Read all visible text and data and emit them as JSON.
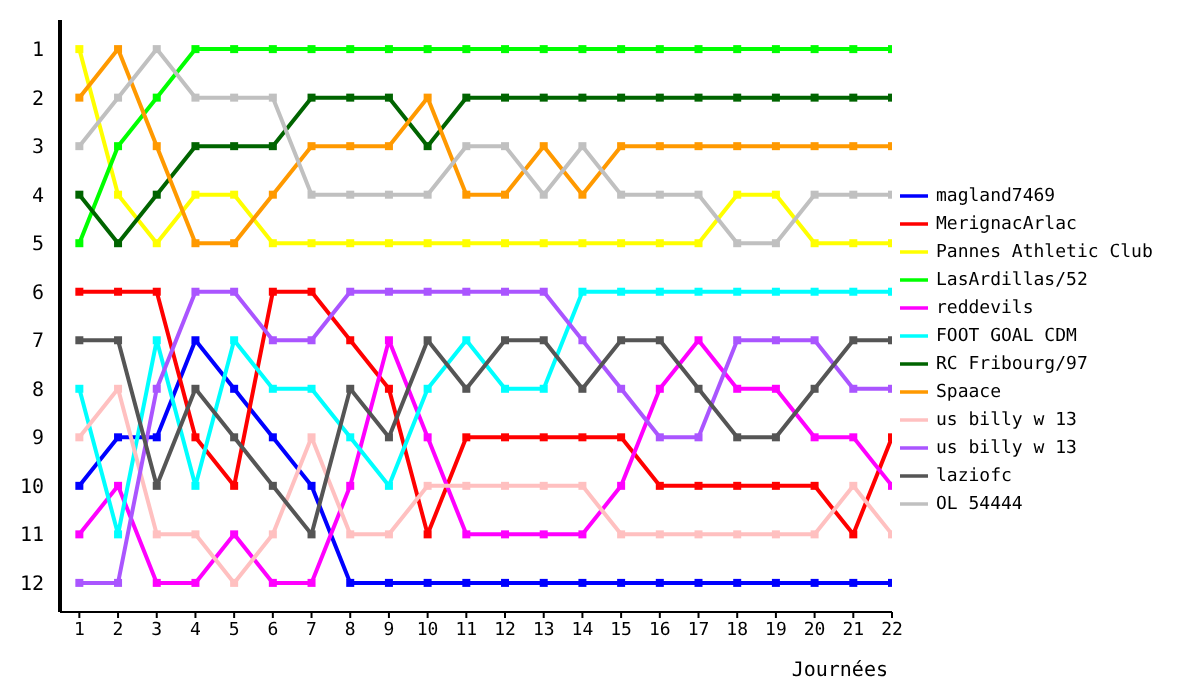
{
  "chart_data": {
    "type": "line",
    "xlabel": "Journées",
    "x": [
      1,
      2,
      3,
      4,
      5,
      6,
      7,
      8,
      9,
      10,
      11,
      12,
      13,
      14,
      15,
      16,
      17,
      18,
      19,
      20,
      21,
      22
    ],
    "xlim": [
      0.5,
      22
    ],
    "xticks": [
      1,
      2,
      3,
      4,
      5,
      6,
      7,
      8,
      9,
      10,
      11,
      12,
      13,
      14,
      15,
      16,
      17,
      18,
      19,
      20,
      21,
      22
    ],
    "ylim": [
      12.6,
      0.4
    ],
    "yticks": [
      1,
      2,
      3,
      4,
      5,
      6,
      7,
      8,
      9,
      10,
      11,
      12
    ],
    "grid": false,
    "legend": "right",
    "marker": "square",
    "line_style": "solid",
    "series": [
      {
        "name": "magland7469",
        "color": "#0000ff",
        "values": [
          10,
          9,
          9,
          7,
          8,
          9,
          10,
          12,
          12,
          12,
          12,
          12,
          12,
          12,
          12,
          12,
          12,
          12,
          12,
          12,
          12,
          12
        ]
      },
      {
        "name": "MerignacArlac",
        "color": "#ff0000",
        "values": [
          6,
          6,
          6,
          9,
          10,
          6,
          6,
          7,
          8,
          11,
          9,
          9,
          9,
          9,
          9,
          10,
          10,
          10,
          10,
          10,
          11,
          9
        ]
      },
      {
        "name": "Pannes Athletic Club",
        "color": "#ffff00",
        "values": [
          1,
          4,
          5,
          4,
          4,
          5,
          5,
          5,
          5,
          5,
          5,
          5,
          5,
          5,
          5,
          5,
          5,
          4,
          4,
          5,
          5,
          5
        ]
      },
      {
        "name": "LasArdillas/52",
        "color": "#00ff00",
        "values": [
          5,
          3,
          2,
          1,
          1,
          1,
          1,
          1,
          1,
          1,
          1,
          1,
          1,
          1,
          1,
          1,
          1,
          1,
          1,
          1,
          1,
          1
        ]
      },
      {
        "name": "reddevils",
        "color": "#ff00ff",
        "values": [
          11,
          10,
          12,
          12,
          11,
          12,
          12,
          10,
          7,
          9,
          11,
          11,
          11,
          11,
          10,
          8,
          7,
          8,
          8,
          9,
          9,
          10
        ]
      },
      {
        "name": "FOOT GOAL CDM",
        "color": "#00ffff",
        "values": [
          8,
          11,
          7,
          10,
          7,
          8,
          8,
          9,
          10,
          8,
          7,
          8,
          8,
          6,
          6,
          6,
          6,
          6,
          6,
          6,
          6,
          6
        ]
      },
      {
        "name": "RC Fribourg/97",
        "color": "#006400",
        "values": [
          4,
          5,
          4,
          3,
          3,
          3,
          2,
          2,
          2,
          3,
          2,
          2,
          2,
          2,
          2,
          2,
          2,
          2,
          2,
          2,
          2,
          2
        ]
      },
      {
        "name": "Spaace",
        "color": "#ff9900",
        "values": [
          2,
          1,
          3,
          5,
          5,
          4,
          3,
          3,
          3,
          2,
          4,
          4,
          3,
          4,
          3,
          3,
          3,
          3,
          3,
          3,
          3,
          3
        ]
      },
      {
        "name": "us billy w 13",
        "color": "#ffc0c0",
        "values": [
          9,
          8,
          11,
          11,
          12,
          11,
          9,
          11,
          11,
          10,
          10,
          10,
          10,
          10,
          11,
          11,
          11,
          11,
          11,
          11,
          10,
          11
        ]
      },
      {
        "name": "us billy w 13",
        "color": "#aa55ff",
        "values": [
          12,
          12,
          8,
          6,
          6,
          7,
          7,
          6,
          6,
          6,
          6,
          6,
          6,
          7,
          8,
          9,
          9,
          7,
          7,
          7,
          8,
          8
        ]
      },
      {
        "name": "laziofc",
        "color": "#555555",
        "values": [
          7,
          7,
          10,
          8,
          9,
          10,
          11,
          8,
          9,
          7,
          8,
          7,
          7,
          8,
          7,
          7,
          8,
          9,
          9,
          8,
          7,
          7
        ]
      },
      {
        "name": "OL 54444",
        "color": "#c0c0c0",
        "values": [
          3,
          2,
          1,
          2,
          2,
          2,
          4,
          4,
          4,
          4,
          3,
          3,
          4,
          3,
          4,
          4,
          4,
          5,
          5,
          4,
          4,
          4
        ]
      }
    ]
  }
}
